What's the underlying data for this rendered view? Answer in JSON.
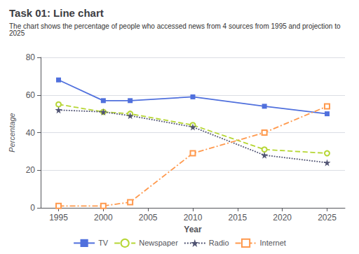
{
  "chart_data": {
    "type": "line",
    "title": "Task 01: Line chart",
    "subtitle": "The chart shows the percentage of people who accessed news from 4 sources from 1995 and projection to 2025",
    "xlabel": "Year",
    "ylabel": "Percentage",
    "x": [
      1995,
      2000,
      2003,
      2010,
      2018,
      2025
    ],
    "series": [
      {
        "name": "TV",
        "values": [
          68,
          57,
          57,
          59,
          54,
          50
        ],
        "marker": "square",
        "line_style": "solid"
      },
      {
        "name": "Newspaper",
        "values": [
          55,
          51,
          50,
          44,
          31,
          29
        ],
        "marker": "open_circle",
        "line_style": "dashed"
      },
      {
        "name": "Radio",
        "values": [
          52,
          51,
          49,
          43,
          28,
          24
        ],
        "marker": "star",
        "line_style": "dotted"
      },
      {
        "name": "Internet",
        "values": [
          1,
          1,
          3,
          29,
          40,
          54
        ],
        "marker": "open_square",
        "line_style": "dashdot"
      }
    ],
    "xlim": [
      1993,
      2027
    ],
    "xticks": [
      1995,
      2000,
      2005,
      2010,
      2015,
      2020,
      2025
    ],
    "ylim": [
      0,
      80
    ],
    "yticks": [
      0,
      20,
      40,
      60,
      80
    ],
    "grid": true,
    "legend": "bottom"
  }
}
